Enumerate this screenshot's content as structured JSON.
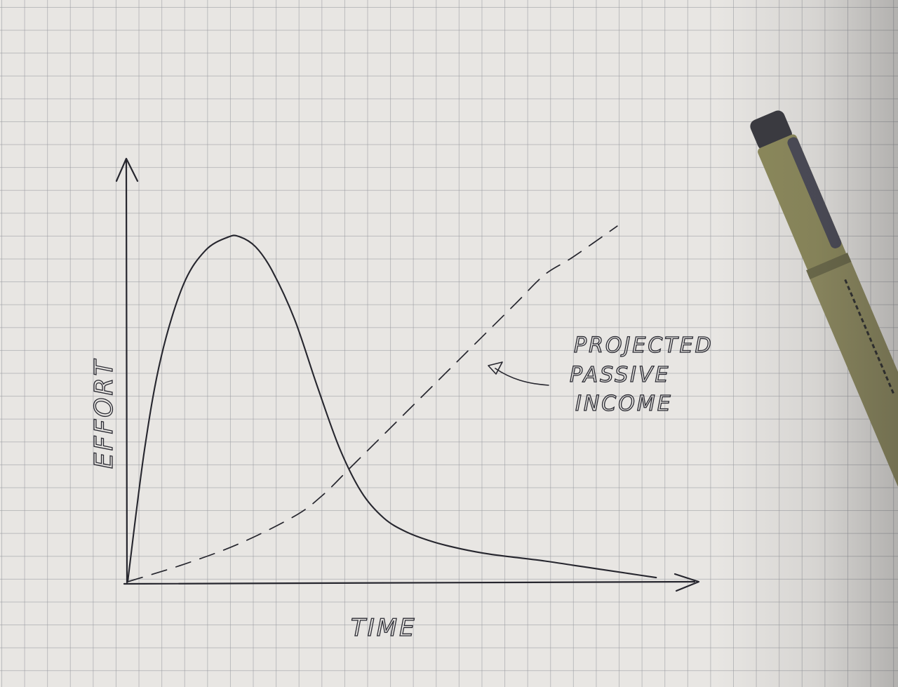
{
  "chart_data": {
    "type": "line",
    "title": "",
    "xlabel": "TIME",
    "ylabel": "EFFORT",
    "xlim": [
      0,
      10
    ],
    "ylim": [
      0,
      10
    ],
    "grid": true,
    "series": [
      {
        "style": "solid",
        "x": [
          0,
          0.3,
          0.6,
          1.0,
          1.4,
          1.8,
          2.0,
          2.3,
          2.6,
          3.0,
          3.4,
          3.8,
          4.2,
          4.6,
          5.0,
          5.5,
          6.0,
          6.5,
          7.0,
          7.5,
          8.0,
          8.5,
          9.0,
          9.5
        ],
        "y": [
          0,
          3.8,
          6.5,
          8.6,
          9.6,
          9.98,
          10.0,
          9.7,
          9.0,
          7.6,
          5.7,
          3.9,
          2.6,
          1.85,
          1.45,
          1.15,
          0.95,
          0.8,
          0.7,
          0.6,
          0.48,
          0.36,
          0.24,
          0.12
        ]
      },
      {
        "style": "dashed",
        "x": [
          0,
          1.0,
          2.0,
          3.0,
          3.5,
          4.0,
          4.5,
          5.0,
          5.5,
          6.0,
          6.5,
          7.0,
          7.5,
          8.0,
          8.8
        ],
        "y": [
          0,
          0.5,
          1.1,
          1.9,
          2.5,
          3.3,
          4.1,
          4.9,
          5.7,
          6.5,
          7.3,
          8.1,
          8.9,
          9.4,
          10.3
        ]
      }
    ],
    "annotations": [
      {
        "text_lines": [
          "PROJECTED",
          "PASSIVE",
          "INCOME"
        ],
        "points_to": "dashed"
      }
    ]
  }
}
